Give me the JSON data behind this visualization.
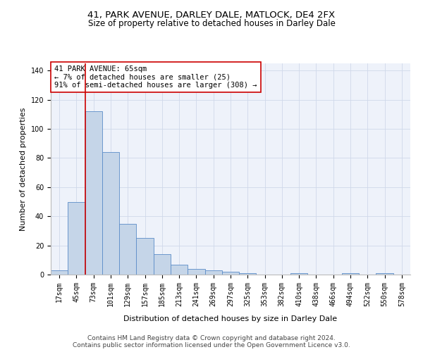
{
  "title1": "41, PARK AVENUE, DARLEY DALE, MATLOCK, DE4 2FX",
  "title2": "Size of property relative to detached houses in Darley Dale",
  "xlabel": "Distribution of detached houses by size in Darley Dale",
  "ylabel": "Number of detached properties",
  "bar_color": "#c5d5e8",
  "bar_edge_color": "#5b8cc8",
  "background_color": "#eef2fa",
  "categories": [
    "17sqm",
    "45sqm",
    "73sqm",
    "101sqm",
    "129sqm",
    "157sqm",
    "185sqm",
    "213sqm",
    "241sqm",
    "269sqm",
    "297sqm",
    "325sqm",
    "353sqm",
    "382sqm",
    "410sqm",
    "438sqm",
    "466sqm",
    "494sqm",
    "522sqm",
    "550sqm",
    "578sqm"
  ],
  "values": [
    3,
    50,
    112,
    84,
    35,
    25,
    14,
    7,
    4,
    3,
    2,
    1,
    0,
    0,
    1,
    0,
    0,
    1,
    0,
    1,
    0
  ],
  "ylim": [
    0,
    145
  ],
  "yticks": [
    0,
    20,
    40,
    60,
    80,
    100,
    120,
    140
  ],
  "annotation_text": "41 PARK AVENUE: 65sqm\n← 7% of detached houses are smaller (25)\n91% of semi-detached houses are larger (308) →",
  "annotation_box_color": "#ffffff",
  "annotation_border_color": "#cc0000",
  "vline_color": "#cc0000",
  "footer1": "Contains HM Land Registry data © Crown copyright and database right 2024.",
  "footer2": "Contains public sector information licensed under the Open Government Licence v3.0.",
  "grid_color": "#d0d8ea",
  "title1_fontsize": 9.5,
  "title2_fontsize": 8.5,
  "xlabel_fontsize": 8,
  "ylabel_fontsize": 8,
  "tick_fontsize": 7,
  "annotation_fontsize": 7.5,
  "footer_fontsize": 6.5
}
